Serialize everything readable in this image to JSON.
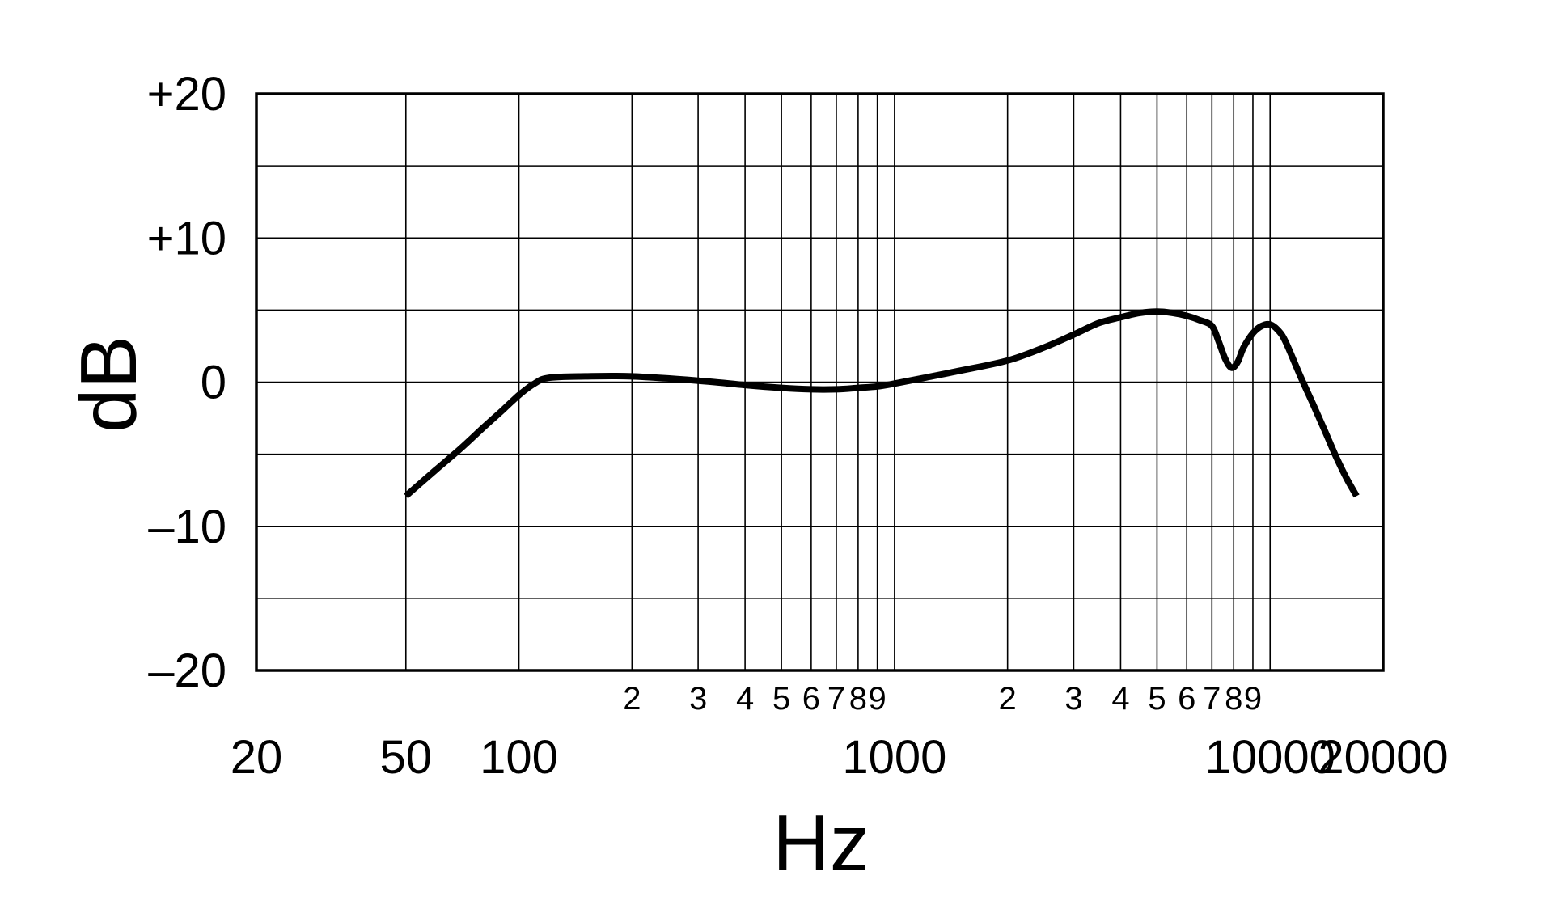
{
  "chart_data": {
    "type": "line",
    "title": "",
    "xlabel": "Hz",
    "ylabel": "dB",
    "xscale": "log",
    "xlim": [
      20,
      20000
    ],
    "ylim": [
      -20,
      20
    ],
    "grid": true,
    "x_major_ticks": [
      {
        "value": 20,
        "label": "20"
      },
      {
        "value": 50,
        "label": "50"
      },
      {
        "value": 100,
        "label": "100"
      },
      {
        "value": 1000,
        "label": "1000"
      },
      {
        "value": 10000,
        "label": "10000"
      },
      {
        "value": 20000,
        "label": "20000"
      }
    ],
    "x_minor_ticks": [
      {
        "value": 200,
        "label": "2"
      },
      {
        "value": 300,
        "label": "3"
      },
      {
        "value": 400,
        "label": "4"
      },
      {
        "value": 500,
        "label": "5"
      },
      {
        "value": 600,
        "label": "6"
      },
      {
        "value": 700,
        "label": "7"
      },
      {
        "value": 800,
        "label": "8"
      },
      {
        "value": 900,
        "label": "9"
      },
      {
        "value": 2000,
        "label": "2"
      },
      {
        "value": 3000,
        "label": "3"
      },
      {
        "value": 4000,
        "label": "4"
      },
      {
        "value": 5000,
        "label": "5"
      },
      {
        "value": 6000,
        "label": "6"
      },
      {
        "value": 7000,
        "label": "7"
      },
      {
        "value": 8000,
        "label": "8"
      },
      {
        "value": 9000,
        "label": "9"
      }
    ],
    "y_ticks": [
      {
        "value": 20,
        "label": "+20"
      },
      {
        "value": 10,
        "label": "+10"
      },
      {
        "value": 0,
        "label": "0"
      },
      {
        "value": -10,
        "label": "–10"
      },
      {
        "value": -20,
        "label": "–20"
      }
    ],
    "y_gridlines": [
      20,
      15,
      10,
      5,
      0,
      -5,
      -10,
      -15,
      -20
    ],
    "x_gridlines": [
      50,
      100,
      200,
      300,
      400,
      500,
      600,
      700,
      800,
      900,
      1000,
      2000,
      3000,
      4000,
      5000,
      6000,
      7000,
      8000,
      9000,
      10000
    ],
    "series": [
      {
        "color": "#000000",
        "x": [
          50,
          60,
          70,
          80,
          90,
          100,
          110,
          120,
          150,
          200,
          300,
          400,
          500,
          600,
          700,
          800,
          900,
          1000,
          1200,
          1500,
          2000,
          2500,
          3000,
          3500,
          4000,
          4500,
          5000,
          5500,
          6000,
          6500,
          7000,
          7300,
          7600,
          7900,
          8200,
          8500,
          9000,
          9500,
          10000,
          10500,
          11000,
          12000,
          13000,
          14000,
          15000,
          16000,
          17000
        ],
        "y": [
          -7.9,
          -6.1,
          -4.6,
          -3.2,
          -2.0,
          -0.9,
          -0.1,
          0.3,
          0.4,
          0.4,
          0.1,
          -0.2,
          -0.4,
          -0.5,
          -0.5,
          -0.4,
          -0.3,
          -0.1,
          0.3,
          0.8,
          1.5,
          2.4,
          3.3,
          4.1,
          4.5,
          4.8,
          4.9,
          4.8,
          4.6,
          4.3,
          3.9,
          2.8,
          1.6,
          1.0,
          1.4,
          2.4,
          3.4,
          3.9,
          4.0,
          3.6,
          2.8,
          0.5,
          -1.5,
          -3.4,
          -5.2,
          -6.7,
          -7.9
        ]
      }
    ]
  }
}
